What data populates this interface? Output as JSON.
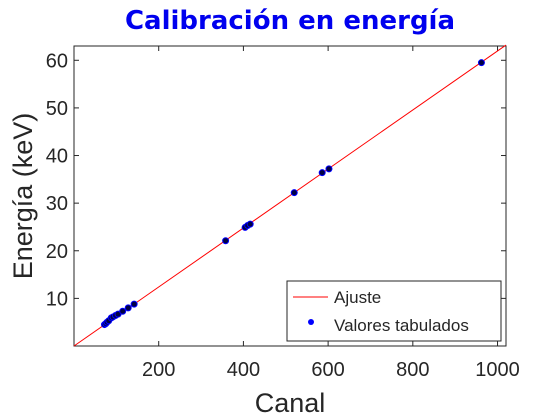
{
  "chart_data": {
    "type": "scatter",
    "title": "Calibración en energía",
    "xlabel": "Canal",
    "ylabel": "Energía (keV)",
    "xlim": [
      0,
      1020
    ],
    "ylim": [
      0,
      63
    ],
    "xticks": [
      200,
      400,
      600,
      800,
      1000
    ],
    "yticks": [
      10,
      20,
      30,
      40,
      50,
      60
    ],
    "grid": false,
    "legend_position": "bottom-right",
    "colors": {
      "title": "#0000ee",
      "fit": "#ff0000",
      "points_fill": "#000044",
      "points_edge": "#0000ff",
      "axis": "#262626"
    },
    "series": [
      {
        "name": "Ajuste",
        "kind": "line",
        "x": [
          0,
          1020
        ],
        "y": [
          0.0,
          63.2
        ]
      },
      {
        "name": "Valores tabulados",
        "kind": "scatter",
        "x": [
          72,
          75,
          78,
          82,
          88,
          92,
          98,
          104,
          115,
          128,
          142,
          358,
          404,
          410,
          416,
          520,
          586,
          602,
          962
        ],
        "y": [
          4.5,
          4.7,
          5.0,
          5.3,
          5.9,
          6.1,
          6.4,
          6.7,
          7.3,
          8.0,
          8.8,
          22.1,
          24.9,
          25.3,
          25.6,
          32.2,
          36.4,
          37.2,
          59.5
        ]
      }
    ]
  }
}
